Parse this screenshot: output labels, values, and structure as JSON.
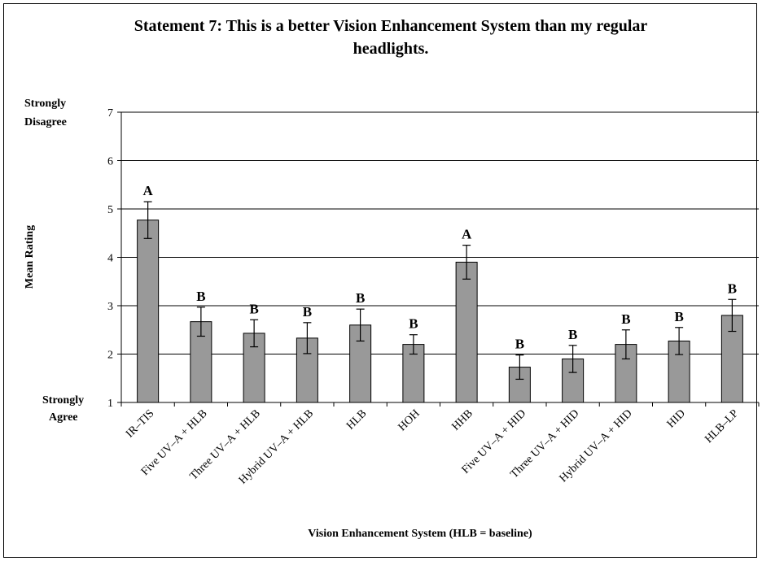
{
  "chart_data": {
    "type": "bar",
    "title_line1": "Statement 7:  This is a better Vision Enhancement System than my regular",
    "title_line2": "headlights.",
    "xlabel": "Vision Enhancement System (HLB = baseline)",
    "ylabel": "Mean Rating",
    "ylim": [
      1,
      7
    ],
    "yticks": [
      1,
      2,
      3,
      4,
      5,
      6,
      7
    ],
    "y_top_label": [
      "Strongly",
      "Disagree"
    ],
    "y_bottom_label": [
      "Strongly",
      "Agree"
    ],
    "grid": true,
    "categories": [
      "IR–TIS",
      "Five UV–A + HLB",
      "Three UV–A + HLB",
      "Hybrid UV–A + HLB",
      "HLB",
      "HOH",
      "HHB",
      "Five UV–A + HID",
      "Three UV–A + HID",
      "Hybrid UV–A + HID",
      "HID",
      "HLB–LP"
    ],
    "values": [
      4.77,
      2.67,
      2.43,
      2.33,
      2.6,
      2.2,
      3.9,
      1.73,
      1.9,
      2.2,
      2.27,
      2.8
    ],
    "error": [
      0.38,
      0.3,
      0.28,
      0.32,
      0.33,
      0.2,
      0.35,
      0.25,
      0.28,
      0.3,
      0.28,
      0.33
    ],
    "group_labels": [
      "A",
      "B",
      "B",
      "B",
      "B",
      "B",
      "A",
      "B",
      "B",
      "B",
      "B",
      "B"
    ],
    "bar_color": "#999999"
  }
}
